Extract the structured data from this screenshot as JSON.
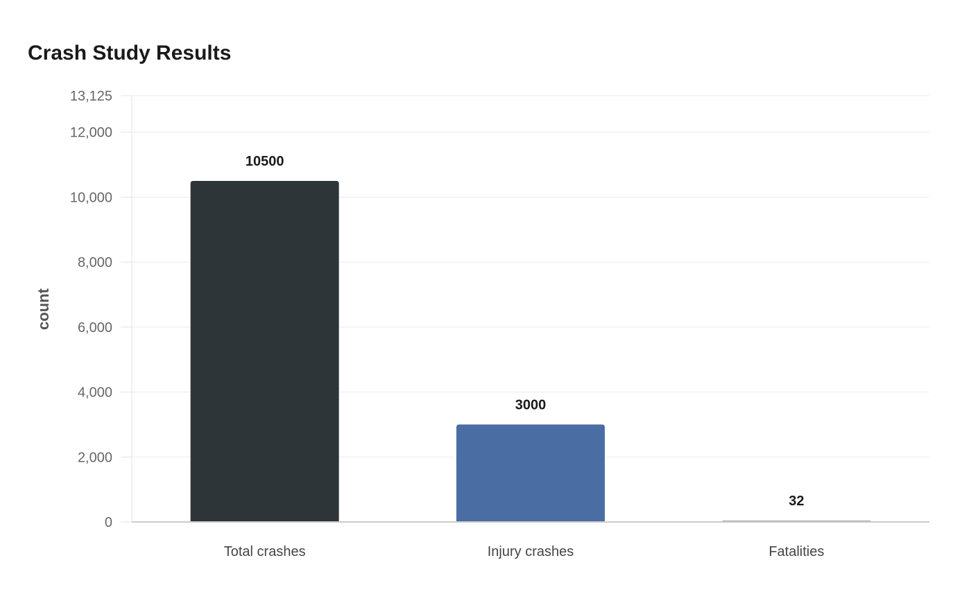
{
  "chart_data": {
    "type": "bar",
    "title": "Crash Study Results",
    "xlabel": "",
    "ylabel": "count",
    "categories": [
      "Total crashes",
      "Injury crashes",
      "Fatalities"
    ],
    "values": [
      10500,
      3000,
      32
    ],
    "value_labels": [
      "10500",
      "3000",
      "32"
    ],
    "colors": [
      "#2e3538",
      "#4a6da3",
      "#9aa0a6"
    ],
    "ylim": [
      0,
      13125
    ],
    "yticks": [
      0,
      2000,
      4000,
      6000,
      8000,
      10000,
      12000,
      13125
    ],
    "ytick_labels": [
      "0",
      "2,000",
      "4,000",
      "6,000",
      "8,000",
      "10,000",
      "12,000",
      "13,125"
    ],
    "grid": true,
    "legend": "none"
  }
}
